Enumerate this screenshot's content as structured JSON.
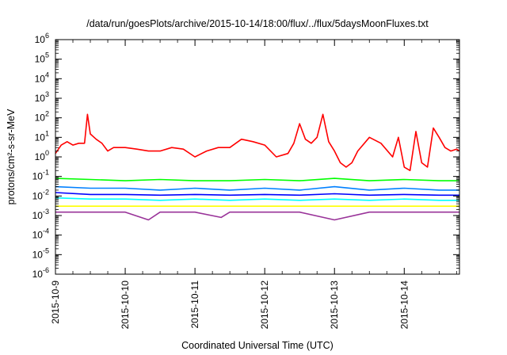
{
  "chart_data": {
    "type": "line",
    "title": "/data/run/goesPlots/archive/2015-10-14/18:00/flux/../flux/5daysMoonFluxes.txt",
    "xlabel": "Coordinated Universal Time (UTC)",
    "ylabel": "protons/cm²-s-sr-MeV",
    "y_scale": "log",
    "ylim": [
      1e-06,
      1000000.0
    ],
    "y_ticks": [
      {
        "exp": -6,
        "base": "10",
        "power": "-6"
      },
      {
        "exp": -5,
        "base": "10",
        "power": "-5"
      },
      {
        "exp": -4,
        "base": "10",
        "power": "-4"
      },
      {
        "exp": -3,
        "base": "10",
        "power": "-3"
      },
      {
        "exp": -2,
        "base": "10",
        "power": "-2"
      },
      {
        "exp": -1,
        "base": "10",
        "power": "-1"
      },
      {
        "exp": 0,
        "base": "10",
        "power": "0"
      },
      {
        "exp": 1,
        "base": "10",
        "power": "1"
      },
      {
        "exp": 2,
        "base": "10",
        "power": "2"
      },
      {
        "exp": 3,
        "base": "10",
        "power": "3"
      },
      {
        "exp": 4,
        "base": "10",
        "power": "4"
      },
      {
        "exp": 5,
        "base": "10",
        "power": "5"
      },
      {
        "exp": 6,
        "base": "10",
        "power": "6"
      }
    ],
    "xlim": [
      "2015-10-09",
      "2015-10-14T19:00"
    ],
    "x_ticks": [
      "2015-10-9",
      "2015-10-10",
      "2015-10-11",
      "2015-10-12",
      "2015-10-13",
      "2015-10-14"
    ],
    "grid": false,
    "legend": "none",
    "series": [
      {
        "color": "#ff0000",
        "x": [
          "2015-10-09T00:00",
          "2015-10-09T02:00",
          "2015-10-09T04:00",
          "2015-10-09T06:00",
          "2015-10-09T08:00",
          "2015-10-09T10:00",
          "2015-10-09T11:00",
          "2015-10-09T12:00",
          "2015-10-09T14:00",
          "2015-10-09T16:00",
          "2015-10-09T18:00",
          "2015-10-09T20:00",
          "2015-10-10T00:00",
          "2015-10-10T04:00",
          "2015-10-10T08:00",
          "2015-10-10T12:00",
          "2015-10-10T16:00",
          "2015-10-10T20:00",
          "2015-10-11T00:00",
          "2015-10-11T04:00",
          "2015-10-11T08:00",
          "2015-10-11T12:00",
          "2015-10-11T16:00",
          "2015-10-11T20:00",
          "2015-10-12T00:00",
          "2015-10-12T04:00",
          "2015-10-12T08:00",
          "2015-10-12T10:00",
          "2015-10-12T12:00",
          "2015-10-12T14:00",
          "2015-10-12T16:00",
          "2015-10-12T18:00",
          "2015-10-12T20:00",
          "2015-10-12T22:00",
          "2015-10-13T00:00",
          "2015-10-13T02:00",
          "2015-10-13T04:00",
          "2015-10-13T06:00",
          "2015-10-13T08:00",
          "2015-10-13T12:00",
          "2015-10-13T16:00",
          "2015-10-13T20:00",
          "2015-10-13T22:00",
          "2015-10-14T00:00",
          "2015-10-14T02:00",
          "2015-10-14T04:00",
          "2015-10-14T06:00",
          "2015-10-14T08:00",
          "2015-10-14T10:00",
          "2015-10-14T12:00",
          "2015-10-14T14:00",
          "2015-10-14T16:00",
          "2015-10-14T18:00",
          "2015-10-14T19:00"
        ],
        "values": [
          1.5,
          4,
          6,
          4,
          5,
          5,
          150,
          15,
          8,
          5,
          2,
          3,
          3,
          2.5,
          2,
          2,
          3,
          2.5,
          1,
          2,
          3,
          3,
          8,
          6,
          4,
          1,
          1.5,
          5,
          50,
          8,
          5,
          10,
          150,
          6,
          2,
          0.5,
          0.3,
          0.5,
          2,
          10,
          5,
          1,
          10,
          0.3,
          0.2,
          20,
          0.5,
          0.3,
          30,
          10,
          3,
          2,
          2.5,
          2
        ]
      },
      {
        "color": "#00ff00",
        "x": [
          "2015-10-09T00:00",
          "2015-10-09T12:00",
          "2015-10-10T00:00",
          "2015-10-10T12:00",
          "2015-10-11T00:00",
          "2015-10-11T12:00",
          "2015-10-12T00:00",
          "2015-10-12T12:00",
          "2015-10-13T00:00",
          "2015-10-13T12:00",
          "2015-10-14T00:00",
          "2015-10-14T12:00",
          "2015-10-14T19:00"
        ],
        "values": [
          0.08,
          0.07,
          0.06,
          0.07,
          0.06,
          0.06,
          0.07,
          0.06,
          0.08,
          0.06,
          0.07,
          0.06,
          0.06
        ]
      },
      {
        "color": "#0080ff",
        "x": [
          "2015-10-09T00:00",
          "2015-10-09T12:00",
          "2015-10-10T00:00",
          "2015-10-10T12:00",
          "2015-10-11T00:00",
          "2015-10-11T12:00",
          "2015-10-12T00:00",
          "2015-10-12T12:00",
          "2015-10-13T00:00",
          "2015-10-13T12:00",
          "2015-10-14T00:00",
          "2015-10-14T12:00",
          "2015-10-14T19:00"
        ],
        "values": [
          0.03,
          0.025,
          0.025,
          0.02,
          0.025,
          0.02,
          0.025,
          0.02,
          0.03,
          0.02,
          0.025,
          0.02,
          0.02
        ]
      },
      {
        "color": "#0000ff",
        "x": [
          "2015-10-09T00:00",
          "2015-10-09T12:00",
          "2015-10-10T00:00",
          "2015-10-10T12:00",
          "2015-10-11T00:00",
          "2015-10-11T12:00",
          "2015-10-12T00:00",
          "2015-10-12T12:00",
          "2015-10-13T00:00",
          "2015-10-13T12:00",
          "2015-10-14T00:00",
          "2015-10-14T12:00",
          "2015-10-14T19:00"
        ],
        "values": [
          0.015,
          0.012,
          0.012,
          0.011,
          0.012,
          0.011,
          0.012,
          0.011,
          0.013,
          0.011,
          0.012,
          0.011,
          0.011
        ]
      },
      {
        "color": "#00ffff",
        "x": [
          "2015-10-09T00:00",
          "2015-10-09T12:00",
          "2015-10-10T00:00",
          "2015-10-10T12:00",
          "2015-10-11T00:00",
          "2015-10-11T12:00",
          "2015-10-12T00:00",
          "2015-10-12T12:00",
          "2015-10-13T00:00",
          "2015-10-13T12:00",
          "2015-10-14T00:00",
          "2015-10-14T12:00",
          "2015-10-14T19:00"
        ],
        "values": [
          0.008,
          0.007,
          0.007,
          0.006,
          0.007,
          0.006,
          0.007,
          0.006,
          0.007,
          0.006,
          0.007,
          0.006,
          0.006
        ]
      },
      {
        "color": "#ffff00",
        "x": [
          "2015-10-09T00:00",
          "2015-10-09T12:00",
          "2015-10-10T00:00",
          "2015-10-10T12:00",
          "2015-10-11T00:00",
          "2015-10-11T12:00",
          "2015-10-12T00:00",
          "2015-10-12T12:00",
          "2015-10-13T00:00",
          "2015-10-13T12:00",
          "2015-10-14T00:00",
          "2015-10-14T12:00",
          "2015-10-14T19:00"
        ],
        "values": [
          0.003,
          0.003,
          0.003,
          0.003,
          0.003,
          0.003,
          0.003,
          0.003,
          0.003,
          0.003,
          0.003,
          0.003,
          0.003
        ]
      },
      {
        "color": "#993399",
        "x": [
          "2015-10-09T00:00",
          "2015-10-09T12:00",
          "2015-10-10T00:00",
          "2015-10-10T08:00",
          "2015-10-10T12:00",
          "2015-10-11T00:00",
          "2015-10-11T09:00",
          "2015-10-11T12:00",
          "2015-10-12T00:00",
          "2015-10-12T12:00",
          "2015-10-13T00:00",
          "2015-10-13T12:00",
          "2015-10-14T00:00",
          "2015-10-14T12:00",
          "2015-10-14T19:00"
        ],
        "values": [
          0.0015,
          0.0015,
          0.0015,
          0.0006,
          0.0015,
          0.0015,
          0.0008,
          0.0015,
          0.0015,
          0.0015,
          0.0006,
          0.0015,
          0.0015,
          0.0015,
          0.0015
        ]
      }
    ]
  }
}
